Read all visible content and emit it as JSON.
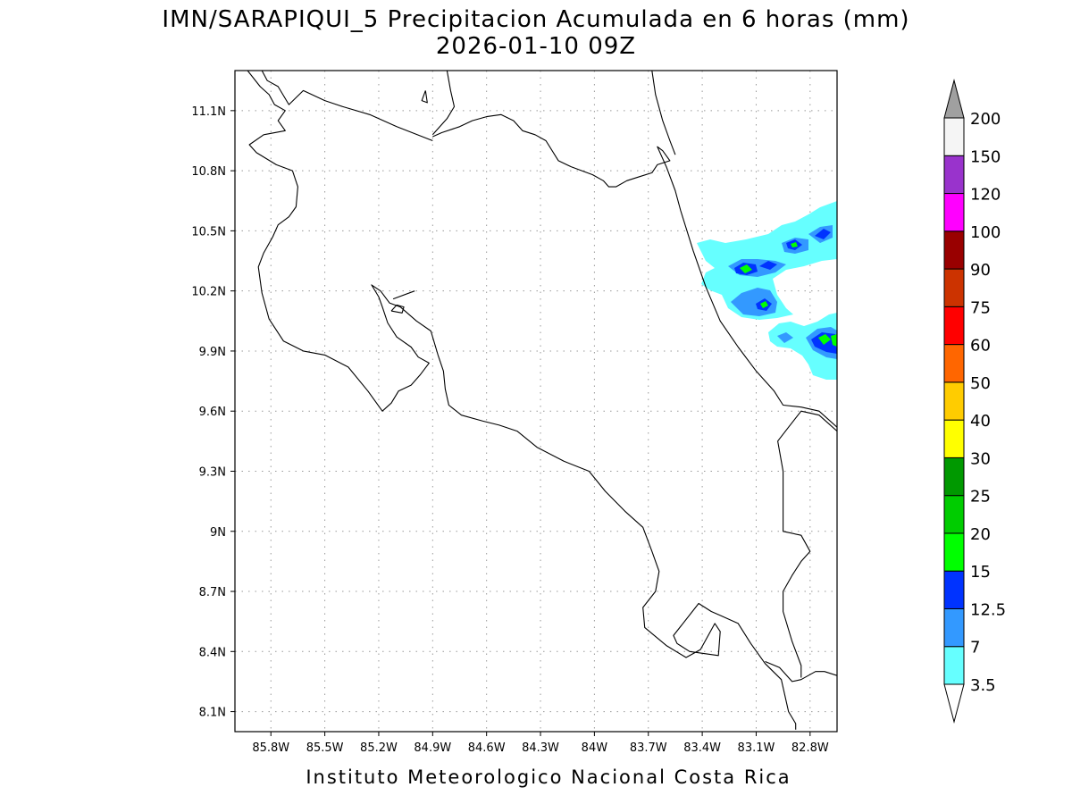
{
  "map": {
    "title_line1": "IMN/SARAPIQUI_5 Precipitacion Acumulada en 6 horas (mm)",
    "title_line2": "2026-01-10 09Z",
    "credit": "Instituto Meteorologico Nacional Costa Rica",
    "lon_range": [
      -86.0,
      -82.65
    ],
    "lat_range": [
      8.0,
      11.3
    ],
    "lon_ticks": [
      {
        "value": -85.8,
        "label": "85.8W"
      },
      {
        "value": -85.5,
        "label": "85.5W"
      },
      {
        "value": -85.2,
        "label": "85.2W"
      },
      {
        "value": -84.9,
        "label": "84.9W"
      },
      {
        "value": -84.6,
        "label": "84.6W"
      },
      {
        "value": -84.3,
        "label": "84.3W"
      },
      {
        "value": -84.0,
        "label": "84W"
      },
      {
        "value": -83.7,
        "label": "83.7W"
      },
      {
        "value": -83.4,
        "label": "83.4W"
      },
      {
        "value": -83.1,
        "label": "83.1W"
      },
      {
        "value": -82.8,
        "label": "82.8W"
      }
    ],
    "lat_ticks": [
      {
        "value": 11.1,
        "label": "11.1N"
      },
      {
        "value": 10.8,
        "label": "10.8N"
      },
      {
        "value": 10.5,
        "label": "10.5N"
      },
      {
        "value": 10.2,
        "label": "10.2N"
      },
      {
        "value": 9.9,
        "label": "9.9N"
      },
      {
        "value": 9.6,
        "label": "9.6N"
      },
      {
        "value": 9.3,
        "label": "9.3N"
      },
      {
        "value": 9.0,
        "label": "9N"
      },
      {
        "value": 8.7,
        "label": "8.7N"
      },
      {
        "value": 8.4,
        "label": "8.4N"
      },
      {
        "value": 8.1,
        "label": "8.1N"
      }
    ],
    "grid": true
  },
  "colorbar": {
    "labels": [
      "3.5",
      "7",
      "12.5",
      "15",
      "20",
      "25",
      "30",
      "40",
      "50",
      "60",
      "75",
      "90",
      "100",
      "120",
      "150",
      "200"
    ],
    "colors": [
      "#66ffff",
      "#3399ff",
      "#0033ff",
      "#00ff00",
      "#00cc00",
      "#009900",
      "#ffff00",
      "#ffcc00",
      "#ff6600",
      "#ff0000",
      "#cc3300",
      "#990000",
      "#ff00ff",
      "#9933cc",
      "#f5f5f5"
    ],
    "low_cap_color": "#ffffff",
    "high_cap_color": "#a0a0a0"
  },
  "colors": {
    "coast": "#000000",
    "grid": "#999999",
    "frame": "#000000"
  },
  "coastline": [
    [
      [
        -85.93,
        11.3
      ],
      [
        -85.86,
        11.22
      ],
      [
        -85.81,
        11.18
      ],
      [
        -85.78,
        11.13
      ],
      [
        -85.72,
        11.1
      ],
      [
        -85.76,
        11.05
      ],
      [
        -85.72,
        11.0
      ],
      [
        -85.84,
        10.98
      ],
      [
        -85.92,
        10.93
      ],
      [
        -85.88,
        10.89
      ],
      [
        -85.77,
        10.83
      ],
      [
        -85.68,
        10.8
      ],
      [
        -85.65,
        10.72
      ],
      [
        -85.66,
        10.62
      ],
      [
        -85.7,
        10.57
      ],
      [
        -85.76,
        10.53
      ],
      [
        -85.79,
        10.47
      ],
      [
        -85.84,
        10.39
      ],
      [
        -85.87,
        10.32
      ],
      [
        -85.85,
        10.19
      ],
      [
        -85.81,
        10.06
      ],
      [
        -85.73,
        9.95
      ],
      [
        -85.62,
        9.9
      ],
      [
        -85.5,
        9.88
      ],
      [
        -85.37,
        9.82
      ],
      [
        -85.26,
        9.7
      ],
      [
        -85.18,
        9.6
      ],
      [
        -85.13,
        9.64
      ],
      [
        -85.09,
        9.7
      ],
      [
        -85.02,
        9.73
      ],
      [
        -84.97,
        9.78
      ],
      [
        -84.92,
        9.84
      ],
      [
        -84.98,
        9.87
      ],
      [
        -85.02,
        9.92
      ],
      [
        -85.1,
        9.97
      ],
      [
        -85.15,
        10.04
      ],
      [
        -85.18,
        10.12
      ],
      [
        -85.2,
        10.17
      ],
      [
        -85.24,
        10.23
      ],
      [
        -85.19,
        10.2
      ],
      [
        -85.14,
        10.14
      ],
      [
        -85.08,
        10.12
      ],
      [
        -84.99,
        10.05
      ],
      [
        -84.91,
        10.0
      ],
      [
        -84.87,
        9.88
      ],
      [
        -84.84,
        9.8
      ],
      [
        -84.83,
        9.71
      ],
      [
        -84.81,
        9.63
      ],
      [
        -84.74,
        9.58
      ],
      [
        -84.62,
        9.55
      ],
      [
        -84.53,
        9.53
      ],
      [
        -84.43,
        9.5
      ],
      [
        -84.32,
        9.42
      ],
      [
        -84.17,
        9.35
      ],
      [
        -84.03,
        9.3
      ],
      [
        -83.94,
        9.2
      ],
      [
        -83.83,
        9.1
      ],
      [
        -83.73,
        9.02
      ],
      [
        -83.68,
        8.9
      ],
      [
        -83.64,
        8.8
      ],
      [
        -83.66,
        8.7
      ],
      [
        -83.73,
        8.62
      ],
      [
        -83.72,
        8.52
      ],
      [
        -83.6,
        8.43
      ],
      [
        -83.49,
        8.37
      ],
      [
        -83.41,
        8.41
      ],
      [
        -83.33,
        8.54
      ],
      [
        -83.3,
        8.5
      ],
      [
        -83.31,
        8.38
      ],
      [
        -83.47,
        8.4
      ],
      [
        -83.54,
        8.44
      ],
      [
        -83.56,
        8.48
      ],
      [
        -83.42,
        8.64
      ],
      [
        -83.35,
        8.6
      ],
      [
        -83.3,
        8.58
      ],
      [
        -83.2,
        8.54
      ],
      [
        -83.13,
        8.44
      ],
      [
        -83.05,
        8.34
      ],
      [
        -82.96,
        8.26
      ],
      [
        -82.92,
        8.1
      ],
      [
        -82.88,
        8.04
      ],
      [
        -82.88,
        8.01
      ]
    ],
    [
      [
        -82.65,
        8.28
      ],
      [
        -82.72,
        8.3
      ],
      [
        -82.77,
        8.3
      ],
      [
        -82.85,
        8.26
      ],
      [
        -82.9,
        8.25
      ],
      [
        -82.97,
        8.32
      ],
      [
        -83.05,
        8.35
      ]
    ],
    [
      [
        -82.65,
        9.5
      ],
      [
        -82.75,
        9.58
      ],
      [
        -82.85,
        9.6
      ],
      [
        -82.92,
        9.52
      ],
      [
        -82.98,
        9.45
      ],
      [
        -82.95,
        9.3
      ],
      [
        -82.95,
        9.0
      ],
      [
        -82.85,
        8.98
      ],
      [
        -82.8,
        8.9
      ],
      [
        -82.85,
        8.85
      ],
      [
        -82.9,
        8.78
      ],
      [
        -82.95,
        8.7
      ],
      [
        -82.95,
        8.6
      ],
      [
        -82.9,
        8.45
      ],
      [
        -82.85,
        8.33
      ],
      [
        -82.85,
        8.27
      ]
    ],
    [
      [
        -82.65,
        9.52
      ],
      [
        -82.75,
        9.6
      ],
      [
        -82.85,
        9.62
      ],
      [
        -82.95,
        9.63
      ],
      [
        -83.0,
        9.7
      ],
      [
        -83.1,
        9.8
      ],
      [
        -83.2,
        9.92
      ],
      [
        -83.3,
        10.05
      ],
      [
        -83.38,
        10.22
      ],
      [
        -83.45,
        10.4
      ],
      [
        -83.52,
        10.6
      ],
      [
        -83.55,
        10.7
      ],
      [
        -83.6,
        10.82
      ],
      [
        -83.65,
        10.92
      ],
      [
        -83.62,
        10.9
      ],
      [
        -83.58,
        10.85
      ],
      [
        -83.65,
        10.83
      ],
      [
        -83.68,
        10.79
      ],
      [
        -83.75,
        10.77
      ],
      [
        -83.82,
        10.75
      ],
      [
        -83.88,
        10.72
      ],
      [
        -83.92,
        10.72
      ],
      [
        -83.95,
        10.75
      ],
      [
        -84.01,
        10.78
      ],
      [
        -84.07,
        10.8
      ],
      [
        -84.13,
        10.82
      ],
      [
        -84.2,
        10.85
      ],
      [
        -84.27,
        10.95
      ],
      [
        -84.33,
        10.98
      ],
      [
        -84.4,
        11.0
      ],
      [
        -84.45,
        11.05
      ],
      [
        -84.52,
        11.08
      ],
      [
        -84.6,
        11.07
      ],
      [
        -84.68,
        11.05
      ],
      [
        -84.75,
        11.02
      ],
      [
        -84.85,
        10.99
      ],
      [
        -84.9,
        10.97
      ]
    ],
    [
      [
        -85.85,
        11.3
      ],
      [
        -85.82,
        11.25
      ],
      [
        -85.76,
        11.22
      ],
      [
        -85.7,
        11.13
      ],
      [
        -85.62,
        11.2
      ],
      [
        -85.5,
        11.15
      ],
      [
        -85.4,
        11.12
      ],
      [
        -85.25,
        11.08
      ],
      [
        -85.1,
        11.02
      ],
      [
        -84.9,
        10.95
      ]
    ],
    [
      [
        -84.9,
        10.98
      ],
      [
        -84.82,
        11.06
      ],
      [
        -84.78,
        11.12
      ],
      [
        -84.8,
        11.2
      ],
      [
        -84.82,
        11.3
      ]
    ],
    [
      [
        -83.68,
        11.3
      ],
      [
        -83.66,
        11.18
      ],
      [
        -83.62,
        11.05
      ],
      [
        -83.58,
        10.95
      ],
      [
        -83.55,
        10.88
      ]
    ],
    [
      [
        -85.0,
        10.2
      ],
      [
        -85.12,
        10.16
      ]
    ],
    [
      [
        -84.94,
        11.2
      ],
      [
        -84.96,
        11.15
      ],
      [
        -84.93,
        11.14
      ],
      [
        -84.94,
        11.2
      ]
    ],
    [
      [
        -85.13,
        10.1
      ],
      [
        -85.1,
        10.13
      ],
      [
        -85.06,
        10.12
      ],
      [
        -85.07,
        10.09
      ],
      [
        -85.13,
        10.1
      ]
    ]
  ]
}
